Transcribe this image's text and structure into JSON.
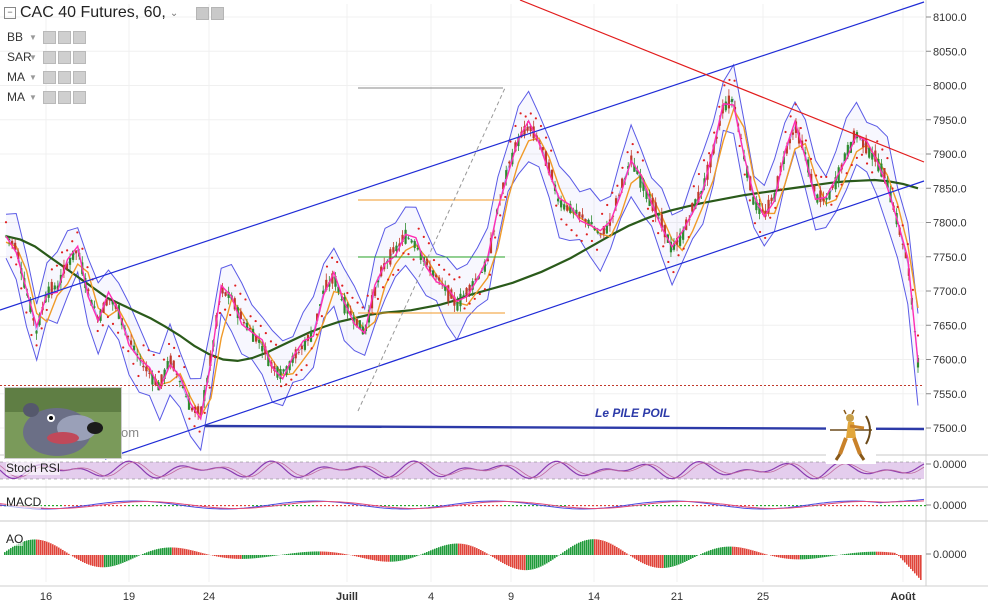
{
  "header": {
    "symbol": "CAC 40 Futures, 60,",
    "collapse_glyph": "−",
    "dropdown_glyph": "⌄"
  },
  "indicators": [
    {
      "label": "BB"
    },
    {
      "label": "SAR"
    },
    {
      "label": "MA"
    },
    {
      "label": "MA"
    }
  ],
  "annotations": {
    "level_label": "Le PILE POIL",
    "level_value": 7500,
    "overlay_text": "om"
  },
  "panes": {
    "stoch": {
      "label": "Stoch RSI",
      "value": "0.0000"
    },
    "macd": {
      "label": "MACD",
      "value": "0.0000"
    },
    "ao": {
      "label": "AO",
      "value": "0.0000"
    }
  },
  "colors": {
    "candle_up": "#2e8b2e",
    "candle_down": "#c0392b",
    "bollinger": "#5a5ae6",
    "sar": "#e02020",
    "ema_fast": "#ff2db4",
    "ma_slow": "#f09a28",
    "ma_long": "#2a5a1a",
    "channel": "#1f2bd6",
    "downtrend": "#e21c1c",
    "stoch_band": "#d8b8e6",
    "stoch_line": "#8a3bb0",
    "ao_up": "#1f9a3a",
    "ao_down": "#e0443a",
    "support": "#2c3aa8"
  },
  "chart_data": {
    "type": "line",
    "title": "CAC 40 Futures, 60,",
    "y_ticks": [
      "8100.0",
      "8050.0",
      "8000.0",
      "7950.0",
      "7900.0",
      "7850.0",
      "7800.0",
      "7750.0",
      "7700.0",
      "7650.0",
      "7600.0",
      "7550.0",
      "7500.0"
    ],
    "x_ticks": [
      "16",
      "19",
      "24",
      "Juill",
      "4",
      "9",
      "14",
      "21",
      "25",
      "Août"
    ],
    "ylim": [
      7455,
      8120
    ],
    "series": [
      {
        "key": "price",
        "values": [
          7780,
          7765,
          7700,
          7640,
          7700,
          7705,
          7740,
          7760,
          7700,
          7660,
          7690,
          7670,
          7630,
          7600,
          7580,
          7560,
          7600,
          7570,
          7530,
          7520,
          7600,
          7700,
          7690,
          7660,
          7640,
          7620,
          7590,
          7580,
          7600,
          7620,
          7640,
          7700,
          7720,
          7680,
          7660,
          7640,
          7700,
          7740,
          7760,
          7780,
          7770,
          7740,
          7720,
          7700,
          7680,
          7700,
          7720,
          7740,
          7820,
          7880,
          7920,
          7940,
          7920,
          7880,
          7830,
          7820,
          7810,
          7800,
          7780,
          7800,
          7850,
          7890,
          7860,
          7830,
          7800,
          7760,
          7780,
          7820,
          7850,
          7900,
          7970,
          7980,
          7900,
          7830,
          7810,
          7840,
          7900,
          7940,
          7900,
          7840,
          7830,
          7860,
          7900,
          7930,
          7910,
          7890,
          7860,
          7800,
          7740,
          7600
        ]
      },
      {
        "key": "ma_long",
        "values": [
          7780,
          7775,
          7765,
          7750,
          7735,
          7720,
          7705,
          7690,
          7680,
          7670,
          7660,
          7648,
          7635,
          7620,
          7608,
          7600,
          7598,
          7602,
          7610,
          7620,
          7630,
          7640,
          7648,
          7655,
          7660,
          7665,
          7668,
          7670,
          7672,
          7676,
          7680,
          7686,
          7694,
          7700,
          7706,
          7712,
          7720,
          7728,
          7738,
          7748,
          7760,
          7772,
          7784,
          7795,
          7804,
          7812,
          7818,
          7823,
          7828,
          7832,
          7836,
          7840,
          7843,
          7846,
          7849,
          7852,
          7855,
          7858,
          7860,
          7861,
          7862,
          7860,
          7856,
          7850
        ]
      }
    ]
  }
}
